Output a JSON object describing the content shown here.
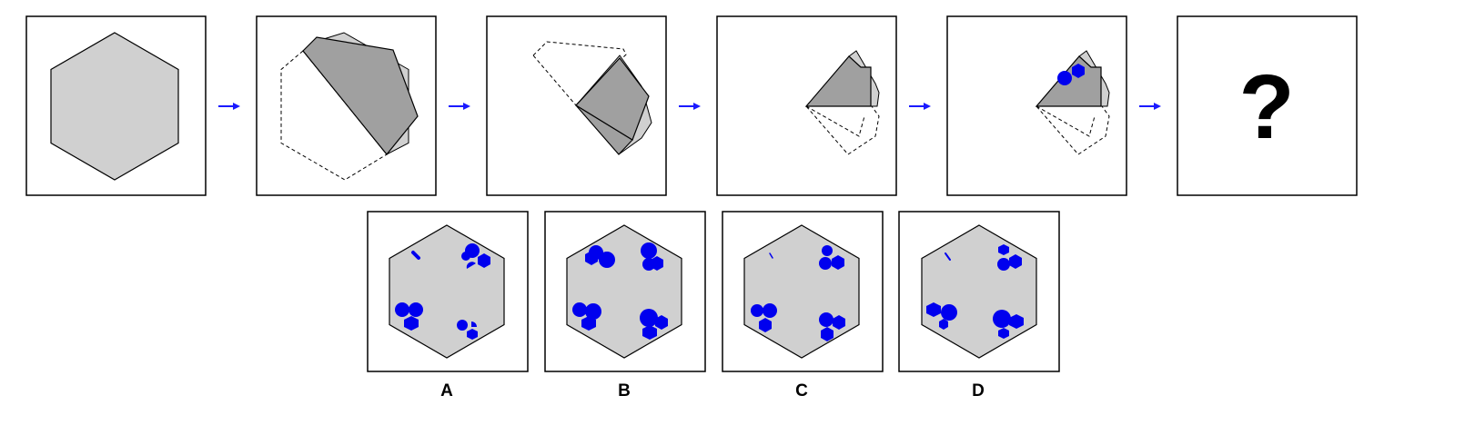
{
  "question_mark": "?",
  "options": [
    {
      "label": "A"
    },
    {
      "label": "B"
    },
    {
      "label": "C"
    },
    {
      "label": "D"
    }
  ],
  "colors": {
    "panel_border": "#000000",
    "hexagon_fill": "#d0d0d0",
    "flap_fill": "#a0a0a0",
    "hole_fill": "#0000ee",
    "arrow": "#1a1aff"
  }
}
